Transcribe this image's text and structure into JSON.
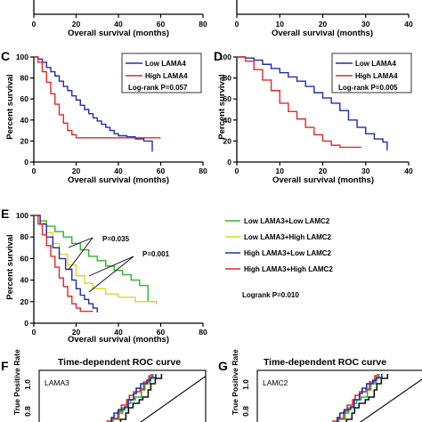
{
  "chart_data": [
    {
      "panel": "",
      "type": "line",
      "xlabel": "Overall survival (months)",
      "ylabel": "",
      "xlim": [
        0,
        80
      ],
      "xticks": [
        "0",
        "20",
        "40",
        "60",
        "80"
      ],
      "series": []
    },
    {
      "panel": "",
      "type": "line",
      "xlabel": "Overall survival (months)",
      "ylabel": "",
      "xlim": [
        0,
        40
      ],
      "xticks": [
        "0",
        "10",
        "20",
        "30",
        "40"
      ],
      "series": []
    },
    {
      "panel": "C",
      "type": "line",
      "xlabel": "Overall survival (months)",
      "ylabel": "Percent survival",
      "xlim": [
        0,
        80
      ],
      "ylim": [
        0,
        100
      ],
      "xticks": [
        "0",
        "20",
        "40",
        "60",
        "80"
      ],
      "yticks": [
        "0",
        "20",
        "40",
        "60",
        "80",
        "100"
      ],
      "legend_position": "top-right",
      "pvalue_text": "Log-rank P=0.057",
      "series": [
        {
          "name": "Low LAMA4",
          "color": "#1f2ea6",
          "x": [
            0,
            2,
            4,
            6,
            8,
            10,
            12,
            14,
            16,
            18,
            20,
            22,
            24,
            26,
            28,
            30,
            32,
            34,
            36,
            38,
            40,
            44,
            48,
            52,
            56,
            56
          ],
          "y": [
            100,
            98,
            95,
            90,
            86,
            82,
            77,
            72,
            68,
            63,
            59,
            54,
            50,
            46,
            42,
            39,
            36,
            33,
            30,
            27,
            25,
            24,
            22,
            20,
            16,
            10
          ]
        },
        {
          "name": "High LAMA4",
          "color": "#e0292c",
          "x": [
            0,
            2,
            4,
            6,
            8,
            10,
            12,
            14,
            16,
            18,
            20,
            60
          ],
          "y": [
            100,
            95,
            86,
            76,
            65,
            55,
            45,
            37,
            30,
            26,
            23,
            23
          ]
        }
      ]
    },
    {
      "panel": "D",
      "type": "line",
      "xlabel": "Overall survival (months)",
      "ylabel": "Percent survival",
      "xlim": [
        0,
        40
      ],
      "ylim": [
        0,
        100
      ],
      "xticks": [
        "0",
        "10",
        "20",
        "30",
        "40"
      ],
      "yticks": [
        "0",
        "20",
        "40",
        "60",
        "80",
        "100"
      ],
      "legend_position": "top-right",
      "pvalue_text": "Log-rank P=0.005",
      "series": [
        {
          "name": "Low LAMA4",
          "color": "#1f2ea6",
          "x": [
            0,
            2,
            4,
            6,
            8,
            10,
            12,
            14,
            16,
            18,
            20,
            22,
            24,
            26,
            28,
            30,
            32,
            34,
            35
          ],
          "y": [
            100,
            99,
            97,
            93,
            89,
            85,
            81,
            77,
            72,
            66,
            61,
            56,
            49,
            40,
            33,
            27,
            22,
            19,
            11
          ]
        },
        {
          "name": "High LAMA4",
          "color": "#e0292c",
          "x": [
            0,
            2,
            4,
            6,
            8,
            10,
            12,
            14,
            16,
            18,
            20,
            22,
            24,
            29
          ],
          "y": [
            100,
            96,
            88,
            78,
            68,
            56,
            48,
            41,
            33,
            26,
            20,
            16,
            14,
            14
          ]
        }
      ]
    },
    {
      "panel": "E",
      "type": "line",
      "xlabel": "Overall survival (months)",
      "ylabel": "Percent survival",
      "xlim": [
        0,
        80
      ],
      "ylim": [
        0,
        100
      ],
      "xticks": [
        "0",
        "20",
        "40",
        "60",
        "80"
      ],
      "yticks": [
        "0",
        "20",
        "40",
        "60",
        "80",
        "100"
      ],
      "legend_position": "right",
      "pvalue_text": "Logrank P=0.010",
      "annotations": [
        "P=0.035",
        "P=0.001"
      ],
      "series": [
        {
          "name": "Low LAMA3+Low LAMC2",
          "color": "#2db52d",
          "x": [
            0,
            3,
            6,
            10,
            14,
            18,
            22,
            26,
            30,
            34,
            38,
            42,
            46,
            50,
            54,
            58
          ],
          "y": [
            100,
            95,
            90,
            85,
            80,
            74,
            68,
            62,
            58,
            53,
            49,
            45,
            40,
            35,
            20,
            18
          ]
        },
        {
          "name": "Low LAMA3+High LAMC2",
          "color": "#d9d630",
          "x": [
            0,
            3,
            6,
            9,
            12,
            16,
            20,
            24,
            28,
            34,
            40,
            48,
            58
          ],
          "y": [
            100,
            93,
            84,
            74,
            64,
            54,
            44,
            37,
            32,
            27,
            24,
            20,
            18
          ]
        },
        {
          "name": "High LAMA3+Low LAMC2",
          "color": "#1f2ea6",
          "x": [
            0,
            3,
            6,
            9,
            12,
            15,
            18,
            20,
            22,
            24,
            26,
            28,
            30
          ],
          "y": [
            100,
            92,
            80,
            70,
            60,
            50,
            40,
            32,
            26,
            22,
            18,
            14,
            10
          ]
        },
        {
          "name": "High LAMA3+High LAMC2",
          "color": "#e0292c",
          "x": [
            0,
            2,
            4,
            6,
            8,
            10,
            12,
            14,
            16,
            18,
            20,
            22,
            28
          ],
          "y": [
            100,
            92,
            82,
            72,
            62,
            52,
            42,
            34,
            25,
            18,
            14,
            11,
            11
          ]
        }
      ]
    },
    {
      "panel": "F",
      "type": "line",
      "title": "Time-dependent ROC curve",
      "label": "LAMA3",
      "ylabel": "True Positive Rate",
      "ylim": [
        0,
        1
      ],
      "yticks": [
        "0.8",
        "1.0"
      ]
    },
    {
      "panel": "G",
      "type": "line",
      "title": "Time-dependent ROC curve",
      "label": "LAMC2",
      "ylabel": "True Positive Rate",
      "ylim": [
        0,
        1
      ],
      "yticks": [
        "0.8",
        "1.0"
      ]
    }
  ]
}
